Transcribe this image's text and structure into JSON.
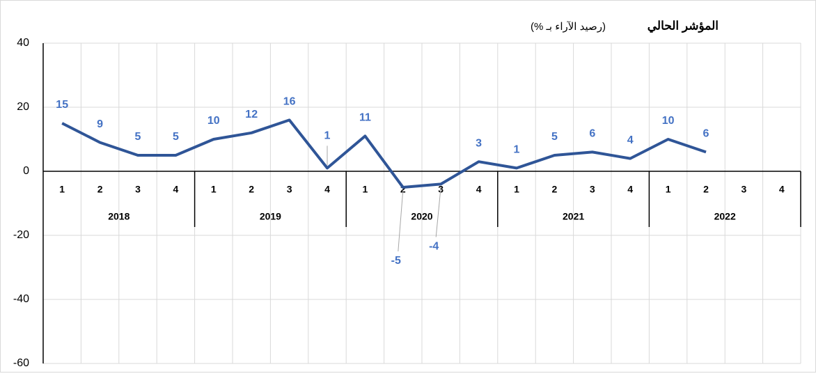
{
  "chart_data": {
    "type": "line",
    "title": "المؤشر الحالي",
    "subtitle": "(رصيد الآراء بـ %)",
    "categories": [
      "1",
      "2",
      "3",
      "4",
      "1",
      "2",
      "3",
      "4",
      "1",
      "2",
      "3",
      "4",
      "1",
      "2",
      "3",
      "4",
      "1",
      "2",
      "3",
      "4"
    ],
    "category_groups": [
      "2018",
      "2019",
      "2020",
      "2021",
      "2022"
    ],
    "series": [
      {
        "name": "المؤشر الحالي",
        "color": "#2f5597",
        "label_color": "#4472c4",
        "values": [
          15,
          9,
          5,
          5,
          10,
          12,
          16,
          1,
          11,
          -5,
          -4,
          3,
          1,
          5,
          6,
          4,
          10,
          6,
          null,
          null
        ]
      }
    ],
    "ylim": [
      -60,
      40
    ],
    "yticks": [
      -60,
      -40,
      -20,
      0,
      20,
      40
    ],
    "grid": true
  }
}
